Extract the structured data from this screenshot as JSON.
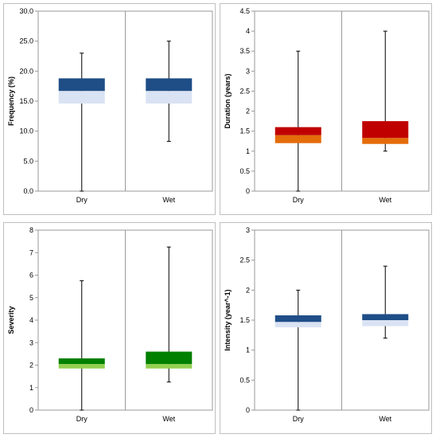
{
  "chart_data": [
    {
      "type": "box",
      "ylabel": "Frequency (%)",
      "ylim": [
        0,
        30
      ],
      "yticks": [
        "0.0",
        "5.0",
        "10.0",
        "15.0",
        "20.0",
        "25.0",
        "30.0"
      ],
      "categories": [
        "Dry",
        "Wet"
      ],
      "box_colors": {
        "upper": "#1f4e87",
        "lower": "#dae3f3"
      },
      "boxes": [
        {
          "category": "Dry",
          "min": 0.0,
          "q1": 14.6,
          "median": 16.7,
          "q3": 18.8,
          "max": 23.0
        },
        {
          "category": "Wet",
          "min": 8.3,
          "q1": 14.6,
          "median": 16.7,
          "q3": 18.8,
          "max": 25.0
        }
      ]
    },
    {
      "type": "box",
      "ylabel": "Duration (years)",
      "ylim": [
        0,
        4.5
      ],
      "yticks": [
        "0",
        "0.5",
        "1",
        "1.5",
        "2",
        "2.5",
        "3",
        "3.5",
        "4",
        "4.5"
      ],
      "categories": [
        "Dry",
        "Wet"
      ],
      "box_colors": {
        "upper": "#c00000",
        "lower": "#e46c0a"
      },
      "boxes": [
        {
          "category": "Dry",
          "min": 0.0,
          "q1": 1.2,
          "median": 1.4,
          "q3": 1.6,
          "max": 3.5
        },
        {
          "category": "Wet",
          "min": 1.0,
          "q1": 1.18,
          "median": 1.33,
          "q3": 1.75,
          "max": 4.0
        }
      ]
    },
    {
      "type": "box",
      "ylabel": "Severity",
      "ylim": [
        0,
        8
      ],
      "yticks": [
        "0",
        "1",
        "2",
        "3",
        "4",
        "5",
        "6",
        "7",
        "8"
      ],
      "categories": [
        "Dry",
        "Wet"
      ],
      "box_colors": {
        "upper": "#008000",
        "lower": "#92d050"
      },
      "boxes": [
        {
          "category": "Dry",
          "min": 0.0,
          "q1": 1.85,
          "median": 2.05,
          "q3": 2.3,
          "max": 5.75
        },
        {
          "category": "Wet",
          "min": 1.25,
          "q1": 1.85,
          "median": 2.05,
          "q3": 2.6,
          "max": 7.25
        }
      ]
    },
    {
      "type": "box",
      "ylabel": "Intensity (year^-1)",
      "ylim": [
        0,
        3
      ],
      "yticks": [
        "0",
        "0.5",
        "1",
        "1.5",
        "2",
        "2.5",
        "3"
      ],
      "categories": [
        "Dry",
        "Wet"
      ],
      "box_colors": {
        "upper": "#1f4e87",
        "lower": "#dae3f3"
      },
      "boxes": [
        {
          "category": "Dry",
          "min": 0.0,
          "q1": 1.38,
          "median": 1.47,
          "q3": 1.58,
          "max": 2.0
        },
        {
          "category": "Wet",
          "min": 1.2,
          "q1": 1.4,
          "median": 1.5,
          "q3": 1.6,
          "max": 2.4
        }
      ]
    }
  ]
}
